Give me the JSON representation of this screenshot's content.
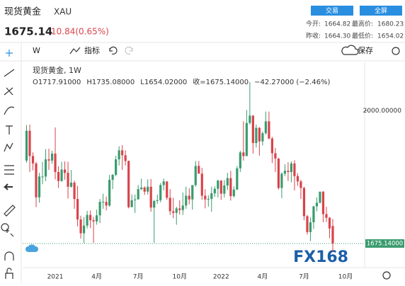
{
  "header": {
    "title": "现货黄金",
    "symbol": "XAU",
    "price": "1675.14",
    "change": "10.84(0.65%)",
    "buttons": [
      "交易",
      "全屏"
    ],
    "stats": [
      [
        "今开:",
        "1664.82"
      ],
      [
        "最高价:",
        "1680.23"
      ],
      [
        "昨收:",
        "1664.30"
      ],
      [
        "最低价:",
        "1654.02"
      ]
    ]
  },
  "toolbar": {
    "interval": "W",
    "indicators": "指标",
    "save": "保存"
  },
  "chart_data": {
    "type": "candlestick",
    "legend_title": "现货黄金, 1W",
    "legend_ohlc": [
      "O1717.91000",
      "H1735.08000",
      "L1654.02000",
      "收=1675.14000",
      "−42.27000 (−2.46%)"
    ],
    "watermark": "FX168",
    "up_color": "#3a9b6e",
    "down_color": "#d9434b",
    "ylim": [
      1630,
      2115
    ],
    "yticks": [
      {
        "value": 2000,
        "label": "2000.00000"
      }
    ],
    "last_price": {
      "value": 1675.14,
      "label": "1675.14000"
    },
    "categories": [
      null,
      null,
      null,
      null,
      null,
      null,
      null,
      null,
      null,
      "2021",
      null,
      null,
      null,
      null,
      null,
      null,
      null,
      null,
      null,
      null,
      null,
      null,
      "4月",
      null,
      null,
      null,
      null,
      null,
      null,
      null,
      null,
      null,
      null,
      null,
      null,
      "7月",
      null,
      null,
      null,
      null,
      null,
      null,
      null,
      null,
      null,
      null,
      null,
      null,
      "10月",
      null,
      null,
      null,
      null,
      null,
      null,
      null,
      null,
      null,
      null,
      null,
      null,
      "2022",
      null,
      null,
      null,
      null,
      null,
      null,
      null,
      null,
      null,
      null,
      null,
      null,
      "4月",
      null,
      null,
      null,
      null,
      null,
      null,
      null,
      null,
      null,
      null,
      null,
      null,
      "7月",
      null,
      null,
      null,
      null,
      null,
      null,
      null,
      null,
      null,
      null,
      null,
      null,
      "10月",
      null,
      null,
      null,
      null,
      null
    ],
    "open": [
      1878,
      1951,
      1889,
      1871,
      1788,
      1839,
      1839,
      1881,
      1878,
      1895,
      1850,
      1828,
      1856,
      1848,
      1814,
      1824,
      1784,
      1734,
      1700,
      1719,
      1745,
      1732,
      1729,
      1744,
      1777,
      1777,
      1768,
      1831,
      1843,
      1881,
      1903,
      1891,
      1877,
      1764,
      1781,
      1783,
      1808,
      1812,
      1802,
      1814,
      1763,
      1779,
      1781,
      1818,
      1827,
      1787,
      1754,
      1750,
      1761,
      1757,
      1768,
      1792,
      1783,
      1818,
      1865,
      1846,
      1792,
      1783,
      1784,
      1798,
      1809,
      1829,
      1797,
      1817,
      1835,
      1791,
      1807,
      1859,
      1898,
      1889,
      1970,
      1988,
      1921,
      1958,
      1925,
      1945,
      1974,
      1932,
      1896,
      1883,
      1811,
      1846,
      1853,
      1850,
      1871,
      1840,
      1827,
      1811,
      1742,
      1703,
      1727,
      1766,
      1775,
      1802,
      1747,
      1738,
      1717.91,
      null,
      null,
      null,
      null,
      null,
      null,
      null,
      null,
      null
    ],
    "high": [
      1965,
      1966,
      1898,
      1875,
      1848,
      1875,
      1906,
      1907,
      1902,
      1959,
      1864,
      1875,
      1876,
      1875,
      1855,
      1829,
      1816,
      1743,
      1740,
      1755,
      1756,
      1740,
      1758,
      1784,
      1797,
      1790,
      1843,
      1845,
      1890,
      1913,
      1916,
      1903,
      1878,
      1795,
      1795,
      1818,
      1834,
      1815,
      1832,
      1833,
      1782,
      1795,
      1823,
      1834,
      1827,
      1808,
      1787,
      1765,
      1781,
      1800,
      1814,
      1810,
      1818,
      1877,
      1877,
      1860,
      1808,
      1793,
      1814,
      1815,
      1831,
      1830,
      1830,
      1848,
      1853,
      1815,
      1865,
      1902,
      1974,
      2002,
      2070,
      1989,
      1966,
      1960,
      1949,
      1998,
      1998,
      1936,
      1909,
      1884,
      1849,
      1869,
      1874,
      1876,
      1879,
      1847,
      1831,
      1814,
      1745,
      1739,
      1767,
      1788,
      1800,
      1803,
      1765,
      1740,
      1735.08,
      null,
      null,
      null,
      null,
      null,
      null,
      null,
      null,
      null
    ],
    "low": [
      1873,
      1850,
      1854,
      1764,
      1775,
      1820,
      1828,
      1855,
      1870,
      1832,
      1811,
      1826,
      1831,
      1785,
      1812,
      1760,
      1717,
      1687,
      1676,
      1712,
      1713,
      1677,
      1721,
      1725,
      1760,
      1756,
      1765,
      1808,
      1840,
      1866,
      1855,
      1866,
      1761,
      1766,
      1750,
      1783,
      1806,
      1794,
      1795,
      1753,
      1677,
      1772,
      1776,
      1805,
      1782,
      1745,
      1737,
      1721,
      1746,
      1745,
      1760,
      1771,
      1758,
      1814,
      1846,
      1782,
      1761,
      1765,
      1753,
      1789,
      1788,
      1782,
      1788,
      1806,
      1780,
      1788,
      1806,
      1850,
      1878,
      1889,
      1966,
      1895,
      1910,
      1890,
      1915,
      1941,
      1930,
      1872,
      1850,
      1807,
      1786,
      1840,
      1828,
      1825,
      1805,
      1816,
      1784,
      1732,
      1697,
      1681,
      1711,
      1754,
      1773,
      1727,
      1728,
      1688,
      1654.02,
      null,
      null,
      null,
      null,
      null,
      null,
      null,
      null,
      null
    ],
    "close": [
      1951,
      1889,
      1871,
      1788,
      1839,
      1839,
      1881,
      1878,
      1895,
      1850,
      1828,
      1856,
      1848,
      1814,
      1824,
      1784,
      1734,
      1700,
      1719,
      1745,
      1732,
      1729,
      1744,
      1777,
      1777,
      1768,
      1831,
      1843,
      1881,
      1903,
      1891,
      1877,
      1764,
      1781,
      1783,
      1808,
      1812,
      1802,
      1814,
      1763,
      1779,
      1781,
      1818,
      1827,
      1787,
      1754,
      1750,
      1761,
      1757,
      1768,
      1792,
      1783,
      1818,
      1865,
      1846,
      1792,
      1783,
      1784,
      1798,
      1809,
      1829,
      1797,
      1817,
      1835,
      1791,
      1807,
      1859,
      1898,
      1889,
      1970,
      1988,
      1921,
      1958,
      1925,
      1945,
      1974,
      1932,
      1896,
      1883,
      1811,
      1846,
      1853,
      1850,
      1871,
      1840,
      1827,
      1811,
      1742,
      1703,
      1727,
      1766,
      1775,
      1802,
      1747,
      1738,
      1712,
      1675.14,
      null,
      null,
      null,
      null,
      null,
      null,
      null,
      null,
      null
    ]
  }
}
